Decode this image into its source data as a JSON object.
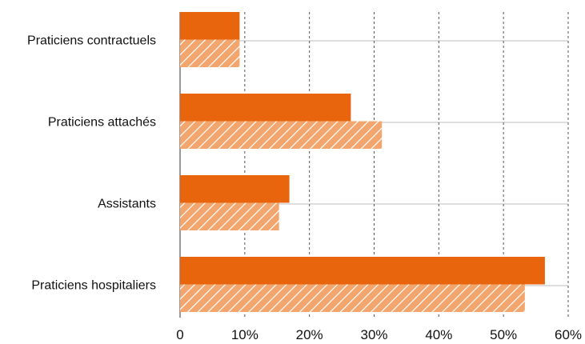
{
  "chart_data": {
    "type": "bar",
    "orientation": "horizontal",
    "categories": [
      "Praticiens contractuels",
      "Praticiens attachés",
      "Assistants",
      "Praticiens hospitaliers"
    ],
    "series": [
      {
        "values": [
          9.2,
          26.4,
          16.9,
          56.4
        ],
        "color": "#E8650E",
        "pattern": "solid"
      },
      {
        "values": [
          9.2,
          31.2,
          15.3,
          53.3
        ],
        "color": "#F2A66E",
        "pattern": "diagonal-hatch"
      }
    ],
    "xlim": [
      0,
      60
    ],
    "xticks": [
      0,
      10,
      20,
      30,
      40,
      50,
      60
    ],
    "xtick_labels": [
      "0",
      "10%",
      "20%",
      "30%",
      "40%",
      "50%",
      "60%"
    ],
    "grid": {
      "vertical": "dashed",
      "horizontal": "solid"
    },
    "legend": "none"
  }
}
